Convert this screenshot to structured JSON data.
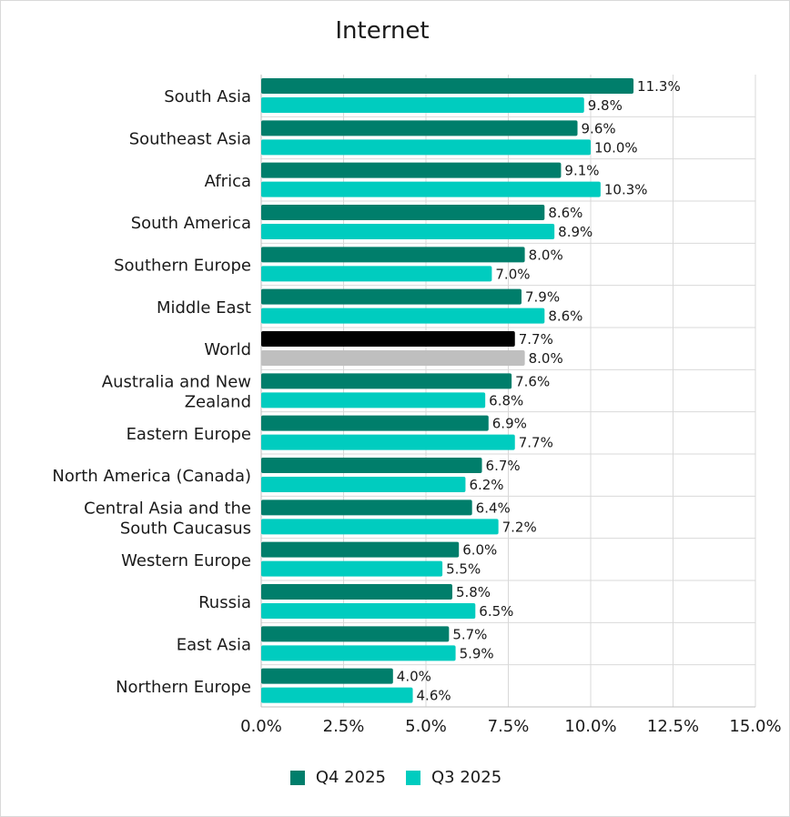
{
  "chart_data": {
    "type": "bar",
    "orientation": "horizontal",
    "title": "Internet",
    "categories": [
      "South Asia",
      "Southeast Asia",
      "Africa",
      "South America",
      "Southern Europe",
      "Middle East",
      "World",
      "Australia and New Zealand",
      "Eastern Europe",
      "North America (Canada)",
      "Central Asia and the South Caucasus",
      "Western Europe",
      "Russia",
      "East Asia",
      "Northern Europe"
    ],
    "series": [
      {
        "name": "Q4 2025",
        "color": "#007e6b",
        "values": [
          11.3,
          9.6,
          9.1,
          8.6,
          8.0,
          7.9,
          7.7,
          7.6,
          6.9,
          6.7,
          6.4,
          6.0,
          5.8,
          5.7,
          4.0
        ],
        "labels": [
          "11.3%",
          "9.6%",
          "9.1%",
          "8.6%",
          "8.0%",
          "7.9%",
          "7.7%",
          "7.6%",
          "6.9%",
          "6.7%",
          "6.4%",
          "6.0%",
          "5.8%",
          "5.7%",
          "4.0%"
        ]
      },
      {
        "name": "Q3 2025",
        "color": "#00ccbf",
        "values": [
          9.8,
          10.0,
          10.3,
          8.9,
          7.0,
          8.6,
          8.0,
          6.8,
          7.7,
          6.2,
          7.2,
          5.5,
          6.5,
          5.9,
          4.6
        ],
        "labels": [
          "9.8%",
          "10.0%",
          "10.3%",
          "8.9%",
          "7.0%",
          "8.6%",
          "8.0%",
          "6.8%",
          "7.7%",
          "6.2%",
          "7.2%",
          "5.5%",
          "6.5%",
          "5.9%",
          "4.6%"
        ]
      }
    ],
    "highlight": {
      "category": "World",
      "colors": [
        "#000000",
        "#bfbfbf"
      ]
    },
    "xlim": [
      0,
      15
    ],
    "xticks": [
      0,
      2.5,
      5,
      7.5,
      10,
      12.5,
      15
    ],
    "xtick_labels": [
      "0.0%",
      "2.5%",
      "5.0%",
      "7.5%",
      "10.0%",
      "12.5%",
      "15.0%"
    ],
    "grid": true,
    "legend_position": "bottom"
  }
}
